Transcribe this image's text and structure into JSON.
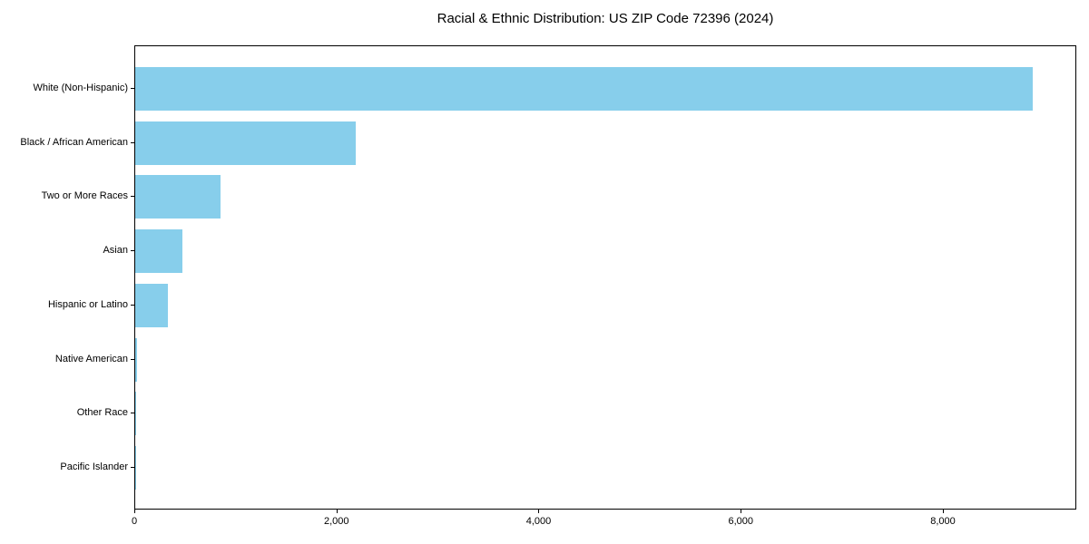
{
  "title": "Racial & Ethnic Distribution: US ZIP Code 72396 (2024)",
  "chart_data": {
    "type": "bar",
    "orientation": "horizontal",
    "title": "Racial & Ethnic Distribution: US ZIP Code 72396 (2024)",
    "categories": [
      "White (Non-Hispanic)",
      "Black / African American",
      "Two or More Races",
      "Asian",
      "Hispanic or Latino",
      "Native American",
      "Other Race",
      "Pacific Islander"
    ],
    "values": [
      8880,
      2185,
      840,
      470,
      320,
      15,
      9,
      2
    ],
    "xlabel": "",
    "ylabel": "",
    "xlim": [
      0,
      9320
    ],
    "xticks": [
      0,
      2000,
      4000,
      6000,
      8000
    ],
    "xtick_labels": [
      "0",
      "2,000",
      "4,000",
      "6,000",
      "8,000"
    ],
    "bar_color": "#87CEEB",
    "grid": false,
    "legend": null,
    "plot_background": "#ffffff",
    "spine_color": "#000000",
    "text_color": "#000000"
  }
}
